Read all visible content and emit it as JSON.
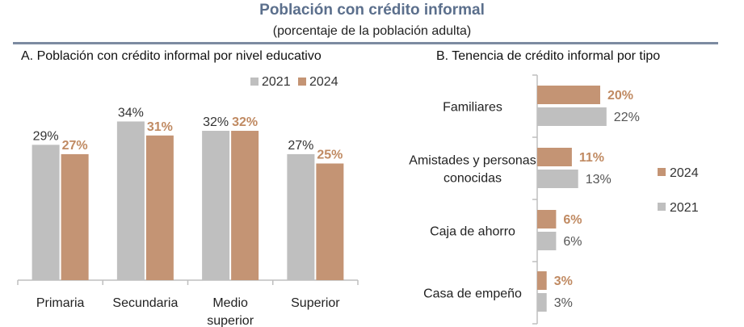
{
  "header": {
    "title": "Población con crédito informal",
    "subtitle": "(porcentaje de la población adulta)"
  },
  "colors": {
    "y2021": "#bfbfbf",
    "y2024": "#c49474",
    "label2024": "#c08a62",
    "axis": "#bfbfbf",
    "title": "#5b6f8c"
  },
  "chart_data": [
    {
      "type": "bar",
      "title": "A. Población con crédito informal por nivel educativo",
      "categories": [
        "Primaria",
        "Secundaria",
        "Medio superior",
        "Superior"
      ],
      "category_lines": [
        [
          "Primaria"
        ],
        [
          "Secundaria"
        ],
        [
          "Medio",
          "superior"
        ],
        [
          "Superior"
        ]
      ],
      "series": [
        {
          "name": "2021",
          "values": [
            29,
            34,
            32,
            27
          ],
          "labels": [
            "29%",
            "34%",
            "32%",
            "27%"
          ]
        },
        {
          "name": "2024",
          "values": [
            27,
            31,
            32,
            25
          ],
          "labels": [
            "27%",
            "31%",
            "32%",
            "25%"
          ]
        }
      ],
      "ylim": [
        0,
        41
      ],
      "legend": "top-right",
      "grid": false
    },
    {
      "type": "bar",
      "orientation": "horizontal",
      "title": "B. Tenencia de crédito informal por tipo",
      "categories": [
        "Familiares",
        "Amistades y personas conocidas",
        "Caja de ahorro",
        "Casa de empeño"
      ],
      "category_lines": [
        [
          "Familiares"
        ],
        [
          "Amistades y personas",
          "conocidas"
        ],
        [
          "Caja de ahorro"
        ],
        [
          "Casa de empeño"
        ]
      ],
      "series": [
        {
          "name": "2024",
          "values": [
            20,
            11,
            6,
            3
          ],
          "labels": [
            "20%",
            "11%",
            "6%",
            "3%"
          ]
        },
        {
          "name": "2021",
          "values": [
            22,
            13,
            6,
            3
          ],
          "labels": [
            "22%",
            "13%",
            "6%",
            "3%"
          ]
        }
      ],
      "xlim": [
        0,
        30
      ],
      "legend": "right",
      "grid": false
    }
  ]
}
